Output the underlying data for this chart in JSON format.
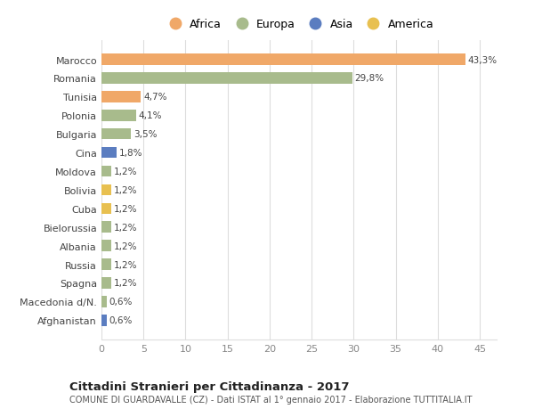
{
  "countries": [
    "Marocco",
    "Romania",
    "Tunisia",
    "Polonia",
    "Bulgaria",
    "Cina",
    "Moldova",
    "Bolivia",
    "Cuba",
    "Bielorussia",
    "Albania",
    "Russia",
    "Spagna",
    "Macedonia d/N.",
    "Afghanistan"
  ],
  "values": [
    43.3,
    29.8,
    4.7,
    4.1,
    3.5,
    1.8,
    1.2,
    1.2,
    1.2,
    1.2,
    1.2,
    1.2,
    1.2,
    0.6,
    0.6
  ],
  "labels": [
    "43,3%",
    "29,8%",
    "4,7%",
    "4,1%",
    "3,5%",
    "1,8%",
    "1,2%",
    "1,2%",
    "1,2%",
    "1,2%",
    "1,2%",
    "1,2%",
    "1,2%",
    "0,6%",
    "0,6%"
  ],
  "colors": [
    "#F0A868",
    "#A8BB8C",
    "#F0A868",
    "#A8BB8C",
    "#A8BB8C",
    "#5B7DC0",
    "#A8BB8C",
    "#E8C050",
    "#E8C050",
    "#A8BB8C",
    "#A8BB8C",
    "#A8BB8C",
    "#A8BB8C",
    "#A8BB8C",
    "#5B7DC0"
  ],
  "legend_labels": [
    "Africa",
    "Europa",
    "Asia",
    "America"
  ],
  "legend_colors": [
    "#F0A868",
    "#A8BB8C",
    "#5B7DC0",
    "#E8C050"
  ],
  "title": "Cittadini Stranieri per Cittadinanza - 2017",
  "subtitle": "COMUNE DI GUARDAVALLE (CZ) - Dati ISTAT al 1° gennaio 2017 - Elaborazione TUTTITALIA.IT",
  "xlim": [
    0,
    47
  ],
  "xticks": [
    0,
    5,
    10,
    15,
    20,
    25,
    30,
    35,
    40,
    45
  ],
  "background_color": "#ffffff",
  "grid_color": "#dddddd",
  "bar_height": 0.6
}
